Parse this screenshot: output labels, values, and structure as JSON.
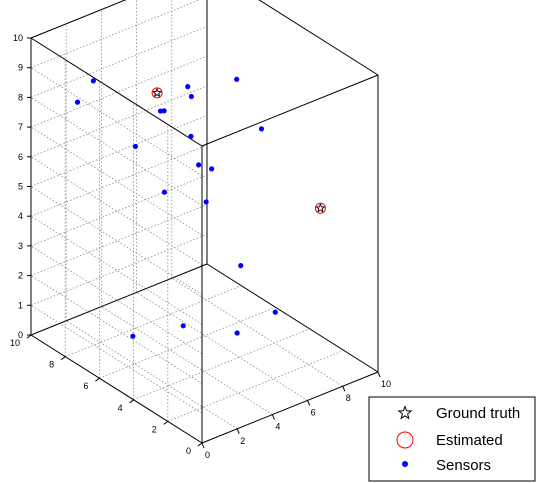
{
  "chart_data": {
    "type": "scatter3d",
    "title": "",
    "xlabel": "",
    "ylabel": "",
    "zlabel": "",
    "xlim": [
      0,
      10
    ],
    "ylim": [
      0,
      10
    ],
    "zlim": [
      0,
      10
    ],
    "x_ticks": [
      "0",
      "2",
      "4",
      "6",
      "8",
      "10"
    ],
    "y_ticks": [
      "0",
      "2",
      "4",
      "6",
      "8",
      "10"
    ],
    "z_ticks": [
      "0",
      "1",
      "2",
      "3",
      "4",
      "5",
      "6",
      "7",
      "8",
      "9",
      "10"
    ],
    "grid": true,
    "legend_position": "bottom-right",
    "legend": [
      {
        "label": "Ground truth",
        "marker": "star",
        "color": "#000000"
      },
      {
        "label": "Estimated",
        "marker": "circle",
        "color": "#ff0000"
      },
      {
        "label": "Sensors",
        "marker": "dot",
        "color": "#0000ff"
      }
    ],
    "series": [
      {
        "name": "Sensors",
        "color": "#0000ff",
        "points": [
          {
            "x": 2.9,
            "y": 5.2,
            "z": 8.6
          },
          {
            "x": 2.6,
            "y": 5.1,
            "z": 8.7
          },
          {
            "x": 6.1,
            "y": 2.8,
            "z": 8.1
          },
          {
            "x": 5.7,
            "y": 6.7,
            "z": 8.2
          },
          {
            "x": 0.7,
            "y": 8.0,
            "z": 8.4
          },
          {
            "x": 7.8,
            "y": 6.0,
            "z": 8.2
          },
          {
            "x": 1.6,
            "y": 8.0,
            "z": 8.9
          },
          {
            "x": 5.2,
            "y": 6.0,
            "z": 6.9
          },
          {
            "x": 6.1,
            "y": 6.9,
            "z": 7.7
          },
          {
            "x": 5.6,
            "y": 5.2,
            "z": 6.0
          },
          {
            "x": 3.5,
            "y": 5.8,
            "z": 5.5
          },
          {
            "x": 4.9,
            "y": 4.8,
            "z": 5.2
          },
          {
            "x": 7.0,
            "y": 7.4,
            "z": 5.0
          },
          {
            "x": 5.7,
            "y": 3.6,
            "z": 3.3
          },
          {
            "x": 3.7,
            "y": 7.7,
            "z": 6.3
          },
          {
            "x": 5.3,
            "y": 3.4,
            "z": 1.2
          },
          {
            "x": 3.5,
            "y": 4.7,
            "z": 1.4
          },
          {
            "x": 2.0,
            "y": 6.1,
            "z": 0.9
          },
          {
            "x": 6.3,
            "y": 2.2,
            "z": 2.1
          }
        ]
      },
      {
        "name": "Ground truth",
        "color": "#000000",
        "points": [
          {
            "x": 2.5,
            "y": 5.2,
            "z": 9.3
          },
          {
            "x": 7.7,
            "y": 1.0,
            "z": 5.7
          }
        ]
      },
      {
        "name": "Estimated",
        "color": "#ff0000",
        "points": [
          {
            "x": 2.5,
            "y": 5.2,
            "z": 9.3
          },
          {
            "x": 7.7,
            "y": 1.0,
            "z": 5.7
          }
        ]
      }
    ]
  }
}
